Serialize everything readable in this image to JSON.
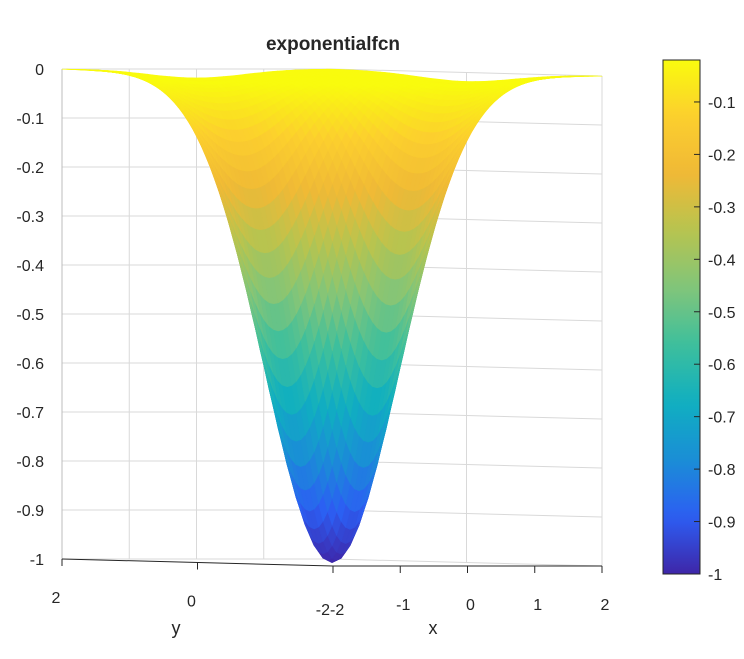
{
  "chart_data": {
    "type": "surface",
    "title": "exponentialfcn",
    "xlabel": "x",
    "ylabel": "y",
    "zlabel": "",
    "function": "z = -exp(-(x^2 + y^2))",
    "x_range": [
      -2,
      2
    ],
    "y_range": [
      -2,
      2
    ],
    "z_range": [
      -1,
      0
    ],
    "z_ticks": [
      "0",
      "-0.1",
      "-0.2",
      "-0.3",
      "-0.4",
      "-0.5",
      "-0.6",
      "-0.7",
      "-0.8",
      "-0.9",
      "-1"
    ],
    "x_ticks": [
      "-2",
      "-1",
      "0",
      "1",
      "2"
    ],
    "y_ticks": [
      "2",
      "0",
      "-2"
    ],
    "grid": true,
    "colormap": "parula",
    "colormap_stops": [
      "#3e26a8",
      "#2c5ef3",
      "#1a8ed6",
      "#10afc0",
      "#3dbf9d",
      "#80c57a",
      "#b6c450",
      "#efb936",
      "#fccf2e",
      "#f9fb0e"
    ],
    "samples": [
      {
        "x": 0,
        "y": 0,
        "z": -1
      },
      {
        "x": 1,
        "y": 0,
        "z": -0.3679
      },
      {
        "x": 2,
        "y": 0,
        "z": -0.0183
      },
      {
        "x": 1,
        "y": 1,
        "z": -0.1353
      },
      {
        "x": 2,
        "y": 2,
        "z": -0.0003
      }
    ],
    "colorbar": {
      "range": [
        -1,
        -0.02
      ],
      "ticks": [
        "-0.1",
        "-0.2",
        "-0.3",
        "-0.4",
        "-0.5",
        "-0.6",
        "-0.7",
        "-0.8",
        "-0.9",
        "-1"
      ]
    }
  }
}
